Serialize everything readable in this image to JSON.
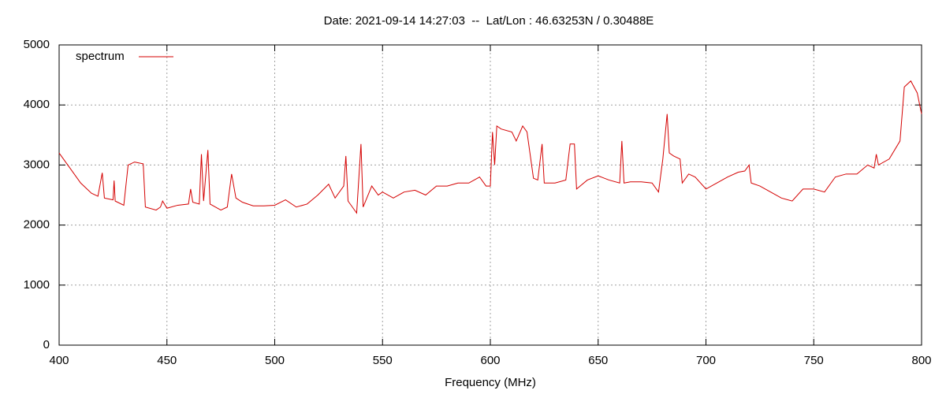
{
  "chart_data": {
    "type": "line",
    "title": "Date: 2021-09-14 14:27:03  --  Lat/Lon : 46.63253N / 0.30488E",
    "x_label": "Frequency (MHz)",
    "x": [
      400,
      405,
      410,
      415,
      418,
      420,
      421,
      425,
      425.5,
      426,
      430,
      432,
      435,
      439,
      440,
      445,
      447,
      448,
      450,
      455,
      460,
      461,
      462,
      465,
      466,
      467,
      469,
      470,
      475,
      478,
      480,
      482,
      485,
      490,
      495,
      500,
      505,
      510,
      515,
      520,
      525,
      528,
      532,
      533,
      534,
      538,
      540,
      541,
      545,
      548,
      550,
      555,
      560,
      565,
      570,
      575,
      580,
      585,
      590,
      595,
      598,
      600,
      601,
      602,
      603,
      605,
      610,
      612,
      615,
      617,
      620,
      622,
      624,
      625,
      630,
      635,
      637,
      639,
      640,
      645,
      650,
      655,
      660,
      661,
      662,
      665,
      670,
      675,
      678,
      680,
      682,
      683,
      685,
      688,
      689,
      692,
      695,
      700,
      705,
      710,
      715,
      718,
      720,
      721,
      725,
      730,
      735,
      740,
      745,
      750,
      755,
      760,
      765,
      770,
      775,
      778,
      779,
      780,
      785,
      790,
      792,
      795,
      798,
      800
    ],
    "series": [
      {
        "name": "spectrum",
        "color": "#d40000",
        "values": [
          3200,
          2950,
          2700,
          2530,
          2480,
          2870,
          2450,
          2420,
          2740,
          2400,
          2330,
          3000,
          3050,
          3020,
          2300,
          2250,
          2300,
          2400,
          2280,
          2330,
          2350,
          2600,
          2380,
          2350,
          3180,
          2400,
          3250,
          2350,
          2250,
          2300,
          2850,
          2450,
          2380,
          2320,
          2320,
          2330,
          2420,
          2300,
          2350,
          2500,
          2680,
          2450,
          2650,
          3150,
          2400,
          2200,
          3350,
          2300,
          2650,
          2500,
          2550,
          2450,
          2550,
          2580,
          2500,
          2650,
          2650,
          2700,
          2700,
          2800,
          2650,
          2650,
          3550,
          3000,
          3650,
          3600,
          3550,
          3400,
          3650,
          3550,
          2780,
          2750,
          3350,
          2700,
          2700,
          2750,
          3350,
          3350,
          2600,
          2750,
          2820,
          2750,
          2700,
          3400,
          2700,
          2720,
          2720,
          2700,
          2550,
          3100,
          3850,
          3200,
          3150,
          3100,
          2700,
          2850,
          2800,
          2600,
          2700,
          2800,
          2880,
          2900,
          3000,
          2700,
          2650,
          2550,
          2450,
          2400,
          2600,
          2600,
          2550,
          2800,
          2850,
          2850,
          3000,
          2950,
          3180,
          3000,
          3100,
          3400,
          4300,
          4400,
          4200,
          3850
        ]
      }
    ],
    "xlim": [
      400,
      800
    ],
    "xticks": [
      400,
      450,
      500,
      550,
      600,
      650,
      700,
      750,
      800
    ],
    "ylim": [
      0,
      5000
    ],
    "yticks": [
      0,
      1000,
      2000,
      3000,
      4000,
      5000
    ],
    "grid": true,
    "legend": "top-left"
  }
}
